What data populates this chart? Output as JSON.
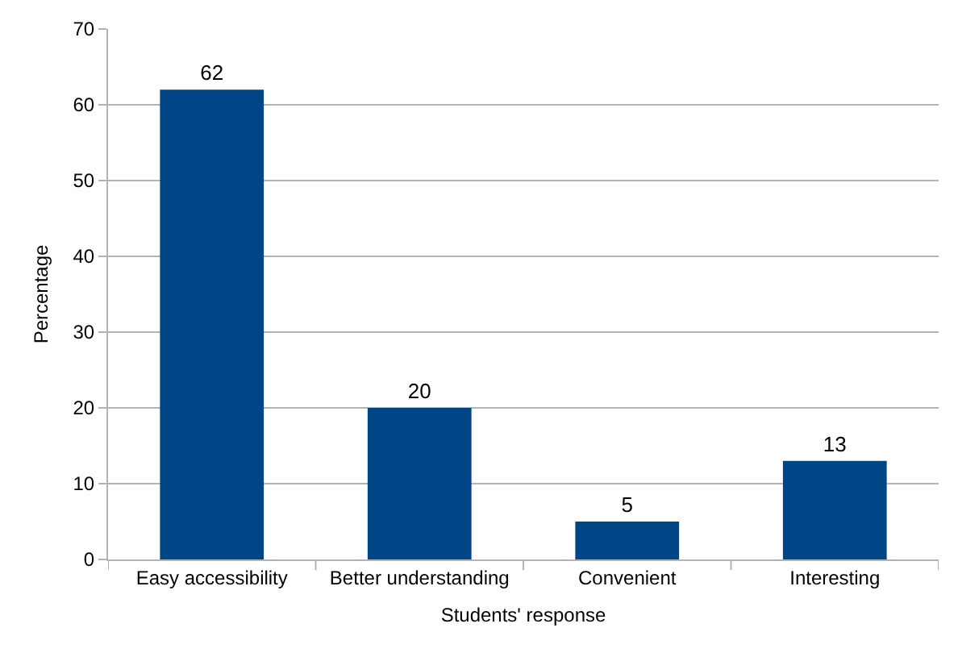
{
  "chart_data": {
    "type": "bar",
    "categories": [
      "Easy accessibility",
      "Better understanding",
      "Convenient",
      "Interesting"
    ],
    "values": [
      62,
      20,
      5,
      13
    ],
    "color": "#004586",
    "xlabel": "Students' response",
    "ylabel": "Percentage",
    "ylim": [
      0,
      70
    ],
    "yticks": [
      0,
      10,
      20,
      30,
      40,
      50,
      60,
      70
    ],
    "grid": "y",
    "data_labels": true
  }
}
